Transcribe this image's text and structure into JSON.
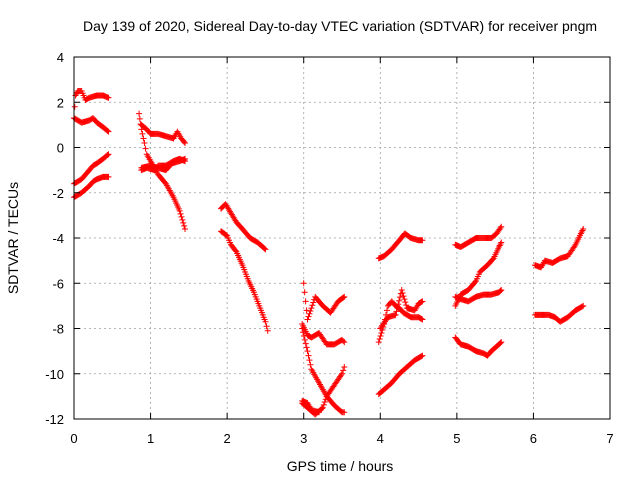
{
  "chart_data": {
    "type": "scatter",
    "title": "Day 139 of 2020, Sidereal Day-to-day VTEC variation (SDTVAR) for receiver pngm",
    "xlabel": "GPS time / hours",
    "ylabel": "SDTVAR / TECUs",
    "xlim": [
      0,
      7
    ],
    "ylim": [
      -12,
      4
    ],
    "xticks": [
      0,
      1,
      2,
      3,
      4,
      5,
      6,
      7
    ],
    "yticks": [
      -12,
      -10,
      -8,
      -6,
      -4,
      -2,
      0,
      2,
      4
    ],
    "xtick_labels": [
      "0",
      "1",
      "2",
      "3",
      "4",
      "5",
      "6",
      "7"
    ],
    "ytick_labels": [
      "-12",
      "-10",
      "-8",
      "-6",
      "-4",
      "-2",
      "0",
      "2",
      "4"
    ],
    "grid": true,
    "marker": "plus",
    "color": "#ff0000",
    "tracks": [
      [
        [
          0.0,
          1.3
        ],
        [
          0.02,
          2.3
        ],
        [
          0.05,
          2.5
        ],
        [
          0.1,
          2.5
        ],
        [
          0.15,
          2.1
        ],
        [
          0.2,
          2.2
        ],
        [
          0.3,
          2.3
        ],
        [
          0.38,
          2.3
        ],
        [
          0.45,
          2.2
        ]
      ],
      [
        [
          0.0,
          1.3
        ],
        [
          0.1,
          1.1
        ],
        [
          0.2,
          1.2
        ],
        [
          0.25,
          1.3
        ],
        [
          0.3,
          1.1
        ],
        [
          0.38,
          0.9
        ],
        [
          0.45,
          0.7
        ]
      ],
      [
        [
          0.0,
          -1.6
        ],
        [
          0.1,
          -1.4
        ],
        [
          0.2,
          -1.0
        ],
        [
          0.25,
          -0.8
        ],
        [
          0.3,
          -0.7
        ],
        [
          0.38,
          -0.5
        ],
        [
          0.45,
          -0.3
        ]
      ],
      [
        [
          0.0,
          -2.2
        ],
        [
          0.1,
          -2.0
        ],
        [
          0.2,
          -1.7
        ],
        [
          0.25,
          -1.5
        ],
        [
          0.3,
          -1.4
        ],
        [
          0.38,
          -1.3
        ],
        [
          0.45,
          -1.3
        ]
      ],
      [
        [
          0.85,
          1.5
        ],
        [
          0.88,
          0.8
        ],
        [
          0.92,
          0.2
        ],
        [
          0.95,
          -0.3
        ],
        [
          1.0,
          -0.6
        ],
        [
          1.05,
          -0.9
        ],
        [
          1.1,
          -1.2
        ],
        [
          1.2,
          -1.6
        ],
        [
          1.3,
          -2.2
        ],
        [
          1.38,
          -2.8
        ],
        [
          1.45,
          -3.6
        ]
      ],
      [
        [
          0.88,
          1.0
        ],
        [
          0.95,
          0.8
        ],
        [
          1.0,
          0.6
        ],
        [
          1.1,
          0.6
        ],
        [
          1.2,
          0.5
        ],
        [
          1.3,
          0.4
        ],
        [
          1.35,
          0.7
        ],
        [
          1.4,
          0.4
        ],
        [
          1.45,
          0.2
        ]
      ],
      [
        [
          0.88,
          -1.0
        ],
        [
          0.95,
          -0.9
        ],
        [
          1.05,
          -1.0
        ],
        [
          1.1,
          -0.8
        ],
        [
          1.2,
          -0.8
        ],
        [
          1.3,
          -0.6
        ],
        [
          1.38,
          -0.5
        ],
        [
          1.45,
          -0.6
        ]
      ],
      [
        [
          0.88,
          -0.9
        ],
        [
          1.0,
          -0.8
        ],
        [
          1.1,
          -0.9
        ],
        [
          1.2,
          -1.0
        ],
        [
          1.28,
          -0.7
        ],
        [
          1.38,
          -0.6
        ],
        [
          1.45,
          -0.5
        ]
      ],
      [
        [
          1.92,
          -2.7
        ],
        [
          1.98,
          -2.5
        ],
        [
          2.05,
          -2.9
        ],
        [
          2.12,
          -3.3
        ],
        [
          2.2,
          -3.6
        ],
        [
          2.3,
          -4.0
        ],
        [
          2.4,
          -4.2
        ],
        [
          2.5,
          -4.5
        ]
      ],
      [
        [
          1.92,
          -3.7
        ],
        [
          2.0,
          -3.9
        ],
        [
          2.05,
          -4.3
        ],
        [
          2.12,
          -4.6
        ],
        [
          2.2,
          -5.2
        ],
        [
          2.28,
          -5.9
        ],
        [
          2.35,
          -6.4
        ],
        [
          2.42,
          -7.0
        ],
        [
          2.5,
          -7.7
        ],
        [
          2.53,
          -8.1
        ]
      ],
      [
        [
          2.98,
          -7.8
        ],
        [
          3.05,
          -8.3
        ],
        [
          3.1,
          -8.4
        ],
        [
          3.2,
          -8.2
        ],
        [
          3.3,
          -8.7
        ],
        [
          3.4,
          -8.7
        ],
        [
          3.5,
          -8.5
        ],
        [
          3.53,
          -8.6
        ]
      ],
      [
        [
          3.0,
          -6.0
        ],
        [
          3.05,
          -7.6
        ],
        [
          3.15,
          -6.6
        ],
        [
          3.25,
          -7.0
        ],
        [
          3.35,
          -7.3
        ],
        [
          3.45,
          -6.8
        ],
        [
          3.53,
          -6.6
        ]
      ],
      [
        [
          2.98,
          -8.0
        ],
        [
          3.05,
          -9.0
        ],
        [
          3.1,
          -9.8
        ],
        [
          3.2,
          -10.4
        ],
        [
          3.3,
          -11.0
        ],
        [
          3.4,
          -11.4
        ],
        [
          3.5,
          -11.7
        ],
        [
          3.53,
          -11.7
        ]
      ],
      [
        [
          2.98,
          -11.3
        ],
        [
          3.05,
          -11.5
        ],
        [
          3.15,
          -11.8
        ],
        [
          3.25,
          -11.5
        ],
        [
          3.3,
          -11.0
        ],
        [
          3.4,
          -10.5
        ],
        [
          3.5,
          -10.0
        ],
        [
          3.53,
          -9.7
        ]
      ],
      [
        [
          2.98,
          -11.2
        ],
        [
          3.05,
          -11.3
        ],
        [
          3.1,
          -11.6
        ],
        [
          3.2,
          -11.7
        ]
      ],
      [
        [
          3.98,
          -4.9
        ],
        [
          4.05,
          -4.8
        ],
        [
          4.15,
          -4.5
        ],
        [
          4.25,
          -4.1
        ],
        [
          4.32,
          -3.8
        ],
        [
          4.4,
          -4.0
        ],
        [
          4.5,
          -4.1
        ],
        [
          4.55,
          -4.1
        ]
      ],
      [
        [
          3.98,
          -8.6
        ],
        [
          4.05,
          -7.8
        ],
        [
          4.1,
          -7.0
        ],
        [
          4.15,
          -6.8
        ],
        [
          4.2,
          -7.0
        ],
        [
          4.25,
          -7.1
        ],
        [
          4.3,
          -7.3
        ],
        [
          4.4,
          -7.5
        ],
        [
          4.5,
          -7.5
        ],
        [
          4.55,
          -7.6
        ]
      ],
      [
        [
          4.0,
          -8.0
        ],
        [
          4.1,
          -7.5
        ],
        [
          4.2,
          -7.4
        ],
        [
          4.28,
          -6.3
        ],
        [
          4.35,
          -7.1
        ],
        [
          4.45,
          -7.2
        ],
        [
          4.5,
          -6.9
        ],
        [
          4.55,
          -6.8
        ]
      ],
      [
        [
          3.98,
          -10.9
        ],
        [
          4.05,
          -10.7
        ],
        [
          4.15,
          -10.4
        ],
        [
          4.25,
          -10.0
        ],
        [
          4.35,
          -9.7
        ],
        [
          4.45,
          -9.4
        ],
        [
          4.55,
          -9.2
        ]
      ],
      [
        [
          4.98,
          -4.3
        ],
        [
          5.05,
          -4.4
        ],
        [
          5.15,
          -4.2
        ],
        [
          5.25,
          -4.0
        ],
        [
          5.35,
          -4.0
        ],
        [
          5.45,
          -4.0
        ],
        [
          5.52,
          -3.8
        ],
        [
          5.58,
          -3.5
        ]
      ],
      [
        [
          4.98,
          -7.0
        ],
        [
          5.05,
          -6.5
        ],
        [
          5.15,
          -6.3
        ],
        [
          5.25,
          -5.9
        ],
        [
          5.3,
          -5.5
        ],
        [
          5.4,
          -5.2
        ],
        [
          5.48,
          -4.9
        ],
        [
          5.55,
          -4.4
        ],
        [
          5.58,
          -4.2
        ]
      ],
      [
        [
          4.98,
          -6.6
        ],
        [
          5.05,
          -6.7
        ],
        [
          5.15,
          -6.8
        ],
        [
          5.25,
          -6.6
        ],
        [
          5.35,
          -6.5
        ],
        [
          5.45,
          -6.5
        ],
        [
          5.55,
          -6.4
        ],
        [
          5.58,
          -6.3
        ]
      ],
      [
        [
          4.98,
          -8.4
        ],
        [
          5.05,
          -8.7
        ],
        [
          5.15,
          -8.8
        ],
        [
          5.25,
          -9.0
        ],
        [
          5.35,
          -9.1
        ],
        [
          5.4,
          -9.2
        ],
        [
          5.45,
          -9.0
        ],
        [
          5.55,
          -8.7
        ],
        [
          5.58,
          -8.6
        ]
      ],
      [
        [
          6.02,
          -5.2
        ],
        [
          6.1,
          -5.3
        ],
        [
          6.15,
          -5.0
        ],
        [
          6.25,
          -5.1
        ],
        [
          6.35,
          -4.9
        ],
        [
          6.45,
          -4.8
        ],
        [
          6.55,
          -4.3
        ],
        [
          6.62,
          -3.8
        ],
        [
          6.65,
          -3.6
        ]
      ],
      [
        [
          6.02,
          -7.4
        ],
        [
          6.1,
          -7.4
        ],
        [
          6.2,
          -7.4
        ],
        [
          6.28,
          -7.5
        ],
        [
          6.35,
          -7.7
        ],
        [
          6.45,
          -7.5
        ],
        [
          6.55,
          -7.2
        ],
        [
          6.65,
          -7.0
        ]
      ]
    ]
  }
}
